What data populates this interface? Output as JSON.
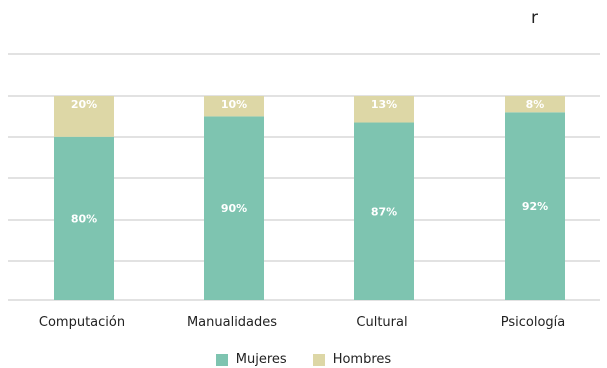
{
  "chart_data": {
    "type": "bar",
    "stacked": true,
    "normalized": true,
    "categories": [
      "Computación",
      "Manualidades",
      "Cultural",
      "Psicología"
    ],
    "series": [
      {
        "name": "Mujeres",
        "values": [
          80,
          90,
          87,
          92
        ],
        "labels": [
          "80%",
          "90%",
          "87%",
          "92%"
        ],
        "color": "#7ec4b0"
      },
      {
        "name": "Hombres",
        "values": [
          20,
          10,
          13,
          8
        ],
        "labels": [
          "20%",
          "10%",
          "13%",
          "8%"
        ],
        "color": "#ddd7a6"
      }
    ],
    "ylim": [
      0,
      100
    ],
    "grid": true,
    "legend_position": "bottom-center"
  },
  "header": {
    "mark": "r"
  }
}
